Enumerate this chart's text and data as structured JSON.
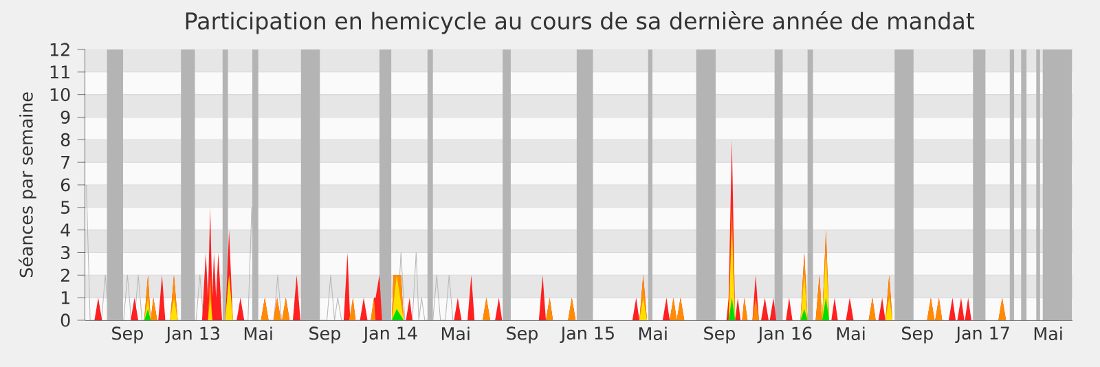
{
  "chart_data": {
    "type": "area",
    "title": "Participation en hemicycle au cours de sa dernière année de mandat",
    "ylabel": "Séances par semaine",
    "xlim": [
      "2012-06-15",
      "2017-06-15"
    ],
    "ylim": [
      0,
      12
    ],
    "yticks": [
      0,
      1,
      2,
      3,
      4,
      5,
      6,
      7,
      8,
      9,
      10,
      11,
      12
    ],
    "xticks": [
      {
        "value": "2012-09-01",
        "label": "Sep"
      },
      {
        "value": "2013-01-01",
        "label": "Jan 13"
      },
      {
        "value": "2013-05-01",
        "label": "Mai"
      },
      {
        "value": "2013-09-01",
        "label": "Sep"
      },
      {
        "value": "2014-01-01",
        "label": "Jan 14"
      },
      {
        "value": "2014-05-01",
        "label": "Mai"
      },
      {
        "value": "2014-09-01",
        "label": "Sep"
      },
      {
        "value": "2015-01-01",
        "label": "Jan 15"
      },
      {
        "value": "2015-05-01",
        "label": "Mai"
      },
      {
        "value": "2015-09-01",
        "label": "Sep"
      },
      {
        "value": "2016-01-01",
        "label": "Jan 16"
      },
      {
        "value": "2016-05-01",
        "label": "Mai"
      },
      {
        "value": "2016-09-01",
        "label": "Sep"
      },
      {
        "value": "2017-01-01",
        "label": "Jan 17"
      },
      {
        "value": "2017-05-01",
        "label": "Mai"
      }
    ],
    "grid": "y",
    "bands": [
      {
        "axis": "x",
        "from": "2012-07-25",
        "to": "2012-08-24",
        "color": "#b4b4b4"
      },
      {
        "axis": "x",
        "from": "2012-12-09",
        "to": "2013-01-04",
        "color": "#b4b4b4"
      },
      {
        "axis": "x",
        "from": "2013-02-24",
        "to": "2013-03-06",
        "color": "#b4b4b4"
      },
      {
        "axis": "x",
        "from": "2013-04-20",
        "to": "2013-05-01",
        "color": "#b4b4b4"
      },
      {
        "axis": "x",
        "from": "2013-07-19",
        "to": "2013-08-23",
        "color": "#b4b4b4"
      },
      {
        "axis": "x",
        "from": "2013-12-11",
        "to": "2014-01-02",
        "color": "#b4b4b4"
      },
      {
        "axis": "x",
        "from": "2014-03-10",
        "to": "2014-03-20",
        "color": "#b4b4b4"
      },
      {
        "axis": "x",
        "from": "2014-07-27",
        "to": "2014-08-11",
        "color": "#b4b4b4"
      },
      {
        "axis": "x",
        "from": "2014-12-11",
        "to": "2015-01-10",
        "color": "#b4b4b4"
      },
      {
        "axis": "x",
        "from": "2015-04-22",
        "to": "2015-04-30",
        "color": "#b4b4b4"
      },
      {
        "axis": "x",
        "from": "2015-07-20",
        "to": "2015-08-25",
        "color": "#b4b4b4"
      },
      {
        "axis": "x",
        "from": "2015-12-12",
        "to": "2015-12-27",
        "color": "#b4b4b4"
      },
      {
        "axis": "x",
        "from": "2016-02-11",
        "to": "2016-02-21",
        "color": "#b4b4b4"
      },
      {
        "axis": "x",
        "from": "2016-07-21",
        "to": "2016-08-25",
        "color": "#b4b4b4"
      },
      {
        "axis": "x",
        "from": "2016-12-13",
        "to": "2017-01-05",
        "color": "#b4b4b4"
      },
      {
        "axis": "x",
        "from": "2017-02-19",
        "to": "2017-02-27",
        "color": "#b4b4b4"
      },
      {
        "axis": "x",
        "from": "2017-03-12",
        "to": "2017-03-22",
        "color": "#b4b4b4"
      },
      {
        "axis": "x",
        "from": "2017-04-09",
        "to": "2017-04-16",
        "color": "#b4b4b4"
      },
      {
        "axis": "x",
        "from": "2017-04-21",
        "to": "2017-06-14",
        "color": "#b4b4b4"
      }
    ],
    "series": [
      {
        "type": "line",
        "color": "#b8b8b8",
        "x": [
          "2012-06-17",
          "2012-06-24",
          "2012-07-15",
          "2012-07-22",
          "2012-07-29",
          "2012-08-25",
          "2012-09-01",
          "2012-09-08",
          "2012-09-14",
          "2012-09-21",
          "2012-09-28",
          "2013-01-06",
          "2013-01-13",
          "2013-01-20",
          "2013-04-12",
          "2013-04-19",
          "2013-04-26",
          "2013-05-30",
          "2013-06-06",
          "2013-06-13",
          "2013-09-05",
          "2013-09-12",
          "2013-09-19",
          "2013-09-25",
          "2013-10-02",
          "2014-01-13",
          "2014-01-20",
          "2014-01-27",
          "2014-02-10",
          "2014-02-17",
          "2014-02-22",
          "2014-02-27",
          "2014-03-05",
          "2014-03-20",
          "2014-03-27",
          "2014-04-03",
          "2014-04-12",
          "2014-04-19",
          "2014-04-26"
        ],
        "values": [
          6,
          0,
          0,
          2,
          0,
          0,
          2,
          0,
          0,
          2,
          0,
          0,
          2,
          0,
          0,
          5,
          0,
          0,
          2,
          0,
          0,
          2,
          0,
          1,
          0,
          0,
          3,
          0,
          0,
          3,
          0,
          1,
          0,
          0,
          2,
          0,
          0,
          2,
          0
        ]
      },
      {
        "color": "#ff2020",
        "x": [
          "2012-07-02",
          "2012-07-09",
          "2012-07-16",
          "2012-09-07",
          "2012-09-14",
          "2012-09-21",
          "2012-10-02",
          "2012-10-09",
          "2012-10-14",
          "2012-10-19",
          "2012-10-26",
          "2012-10-28",
          "2012-11-04",
          "2012-11-10",
          "2012-11-19",
          "2012-11-26",
          "2012-12-03",
          "2013-01-17",
          "2013-01-24",
          "2013-01-28",
          "2013-02-01",
          "2013-02-05",
          "2013-02-08",
          "2013-02-12",
          "2013-02-16",
          "2013-02-23",
          "2013-03-01",
          "2013-03-08",
          "2013-03-15",
          "2013-03-22",
          "2013-03-29",
          "2013-04-05",
          "2013-05-06",
          "2013-05-13",
          "2013-05-20",
          "2013-05-29",
          "2013-06-05",
          "2013-06-12",
          "2013-06-14",
          "2013-06-21",
          "2013-06-28",
          "2013-07-04",
          "2013-07-11",
          "2013-07-18",
          "2013-10-06",
          "2013-10-13",
          "2013-10-18",
          "2013-10-23",
          "2013-10-28",
          "2013-11-05",
          "2013-11-12",
          "2013-11-19",
          "2013-11-25",
          "2013-12-01",
          "2013-12-04",
          "2013-12-11",
          "2013-12-16",
          "2014-01-03",
          "2014-01-06",
          "2014-01-20",
          "2014-01-25",
          "2014-01-29",
          "2014-02-05",
          "2014-02-10",
          "2014-04-28",
          "2014-05-05",
          "2014-05-12",
          "2014-05-23",
          "2014-05-30",
          "2014-06-05",
          "2014-06-20",
          "2014-06-27",
          "2014-07-04",
          "2014-07-13",
          "2014-07-20",
          "2014-07-26",
          "2014-10-02",
          "2014-10-09",
          "2014-10-15",
          "2014-10-22",
          "2014-10-28",
          "2014-11-25",
          "2014-12-02",
          "2014-12-09",
          "2015-03-24",
          "2015-03-31",
          "2015-04-06",
          "2015-04-13",
          "2015-04-20",
          "2015-05-19",
          "2015-05-26",
          "2015-06-01",
          "2015-06-08",
          "2015-06-14",
          "2015-06-21",
          "2015-06-28",
          "2015-09-14",
          "2015-09-18",
          "2015-09-24",
          "2015-09-30",
          "2015-10-05",
          "2015-10-10",
          "2015-10-13",
          "2015-10-17",
          "2015-10-23",
          "2015-11-01",
          "2015-11-07",
          "2015-11-13",
          "2015-11-17",
          "2015-11-24",
          "2015-12-01",
          "2015-12-03",
          "2015-12-10",
          "2015-12-15",
          "2016-01-02",
          "2016-01-08",
          "2016-01-14",
          "2016-01-29",
          "2016-02-05",
          "2016-02-11",
          "2016-02-26",
          "2016-03-04",
          "2016-03-09",
          "2016-03-16",
          "2016-03-22",
          "2016-03-26",
          "2016-04-01",
          "2016-04-07",
          "2016-04-22",
          "2016-04-29",
          "2016-05-06",
          "2016-06-03",
          "2016-06-10",
          "2016-06-16",
          "2016-06-21",
          "2016-06-28",
          "2016-07-04",
          "2016-07-11",
          "2016-07-17",
          "2016-09-19",
          "2016-09-26",
          "2016-10-03",
          "2016-10-04",
          "2016-10-11",
          "2016-10-17",
          "2016-10-29",
          "2016-11-05",
          "2016-11-11",
          "2016-11-14",
          "2016-11-21",
          "2016-11-27",
          "2016-11-28",
          "2016-12-04",
          "2016-12-10",
          "2017-01-29",
          "2017-02-05",
          "2017-02-12"
        ],
        "values": [
          0,
          1,
          0,
          0,
          1,
          0,
          0,
          2,
          0,
          1,
          0,
          0,
          2,
          0,
          0,
          2,
          0,
          0,
          3,
          1,
          5,
          1,
          3,
          1,
          3,
          0,
          0,
          4,
          0,
          0,
          1,
          0,
          0,
          1,
          0,
          0,
          1,
          0,
          0,
          1,
          0,
          0,
          2,
          0,
          0,
          3,
          0,
          1,
          0,
          0,
          1,
          0,
          0,
          1,
          1,
          2,
          0,
          0,
          2,
          2,
          0,
          0,
          1,
          0,
          0,
          1,
          0,
          0,
          2,
          0,
          0,
          1,
          0,
          0,
          1,
          0,
          0,
          2,
          0,
          1,
          0,
          0,
          1,
          0,
          0,
          1,
          0,
          2,
          0,
          0,
          1,
          0,
          1,
          0,
          1,
          0,
          0,
          1,
          8,
          0,
          1,
          0,
          0,
          1,
          0,
          0,
          2,
          0,
          0,
          1,
          0,
          0,
          1,
          0,
          0,
          1,
          0,
          0,
          3,
          0,
          0,
          2,
          0,
          4,
          0,
          0,
          1,
          0,
          0,
          1,
          0,
          0,
          1,
          0,
          0,
          1,
          0,
          2,
          0,
          0,
          1,
          0,
          0,
          1,
          0,
          0,
          1,
          0,
          0,
          1,
          0,
          0,
          1,
          0,
          0,
          1,
          0
        ]
      },
      {
        "color": "#ff8c00",
        "x": [
          "2012-10-02",
          "2012-10-09",
          "2012-10-14",
          "2012-10-19",
          "2012-10-26",
          "2012-11-19",
          "2012-11-26",
          "2012-12-03",
          "2013-01-28",
          "2013-02-01",
          "2013-02-05",
          "2013-03-01",
          "2013-03-08",
          "2013-03-15",
          "2013-05-06",
          "2013-05-13",
          "2013-05-20",
          "2013-05-29",
          "2013-06-05",
          "2013-06-12",
          "2013-06-14",
          "2013-06-21",
          "2013-06-28",
          "2013-10-16",
          "2013-10-23",
          "2013-10-28",
          "2013-11-25",
          "2013-12-01",
          "2013-12-04",
          "2014-01-03",
          "2014-01-06",
          "2014-01-20",
          "2014-01-25",
          "2014-06-20",
          "2014-06-27",
          "2014-07-04",
          "2014-10-15",
          "2014-10-22",
          "2014-10-28",
          "2014-11-25",
          "2014-12-02",
          "2014-12-09",
          "2015-04-06",
          "2015-04-13",
          "2015-04-20",
          "2015-06-01",
          "2015-06-08",
          "2015-06-14",
          "2015-06-21",
          "2015-06-28",
          "2015-09-18",
          "2015-09-24",
          "2015-09-30",
          "2015-10-13",
          "2015-10-17",
          "2015-10-23",
          "2015-11-01",
          "2015-11-07",
          "2015-11-13",
          "2016-01-29",
          "2016-02-05",
          "2016-02-11",
          "2016-02-26",
          "2016-03-04",
          "2016-03-09",
          "2016-03-16",
          "2016-03-22",
          "2016-06-03",
          "2016-06-10",
          "2016-06-16",
          "2016-07-04",
          "2016-07-11",
          "2016-07-17",
          "2016-09-19",
          "2016-09-26",
          "2016-10-03",
          "2016-10-04",
          "2016-10-11",
          "2016-10-17",
          "2017-01-29",
          "2017-02-05",
          "2017-02-12"
        ],
        "values": [
          0,
          2,
          0,
          1,
          0,
          0,
          2,
          0,
          0,
          2,
          0,
          0,
          2,
          0,
          0,
          1,
          0,
          0,
          1,
          0,
          0,
          1,
          0,
          0,
          1,
          0,
          0,
          1,
          0,
          0,
          2,
          2,
          0,
          0,
          1,
          0,
          0,
          1,
          0,
          0,
          1,
          0,
          0,
          2,
          0,
          0,
          1,
          0,
          1,
          0,
          0,
          5,
          0,
          0,
          1,
          0,
          0,
          1,
          0,
          0,
          3,
          0,
          0,
          2,
          0,
          4,
          0,
          0,
          1,
          0,
          0,
          2,
          0,
          0,
          1,
          0,
          0,
          1,
          0,
          0,
          1,
          0
        ]
      },
      {
        "color": "#ffe000",
        "x": [
          "2012-10-02",
          "2012-10-09",
          "2012-10-14",
          "2012-11-19",
          "2012-11-26",
          "2012-12-03",
          "2013-01-28",
          "2013-02-01",
          "2013-02-05",
          "2013-03-01",
          "2013-03-08",
          "2013-03-15",
          "2014-01-03",
          "2014-01-12",
          "2014-01-25",
          "2015-04-06",
          "2015-04-13",
          "2015-04-20",
          "2015-09-18",
          "2015-09-24",
          "2015-09-30",
          "2016-01-29",
          "2016-02-05",
          "2016-02-11",
          "2016-03-09",
          "2016-03-16",
          "2016-03-22",
          "2016-07-04",
          "2016-07-11",
          "2016-07-17"
        ],
        "values": [
          0,
          1,
          0,
          0,
          1,
          0,
          0,
          1,
          0,
          0,
          2,
          0,
          0,
          2,
          0,
          0,
          1,
          0,
          0,
          4,
          0,
          0,
          2,
          0,
          0,
          3,
          0,
          0,
          1,
          0
        ]
      },
      {
        "color": "#00dd00",
        "x": [
          "2012-10-02",
          "2012-10-09",
          "2012-10-14",
          "2014-01-03",
          "2014-01-12",
          "2014-01-25",
          "2015-09-18",
          "2015-09-24",
          "2015-09-30",
          "2016-01-29",
          "2016-02-05",
          "2016-02-11",
          "2016-03-09",
          "2016-03-16",
          "2016-03-22"
        ],
        "values": [
          0,
          0.5,
          0,
          0,
          0.5,
          0,
          0,
          1,
          0,
          0,
          0.5,
          0,
          0,
          1,
          0
        ]
      }
    ]
  }
}
